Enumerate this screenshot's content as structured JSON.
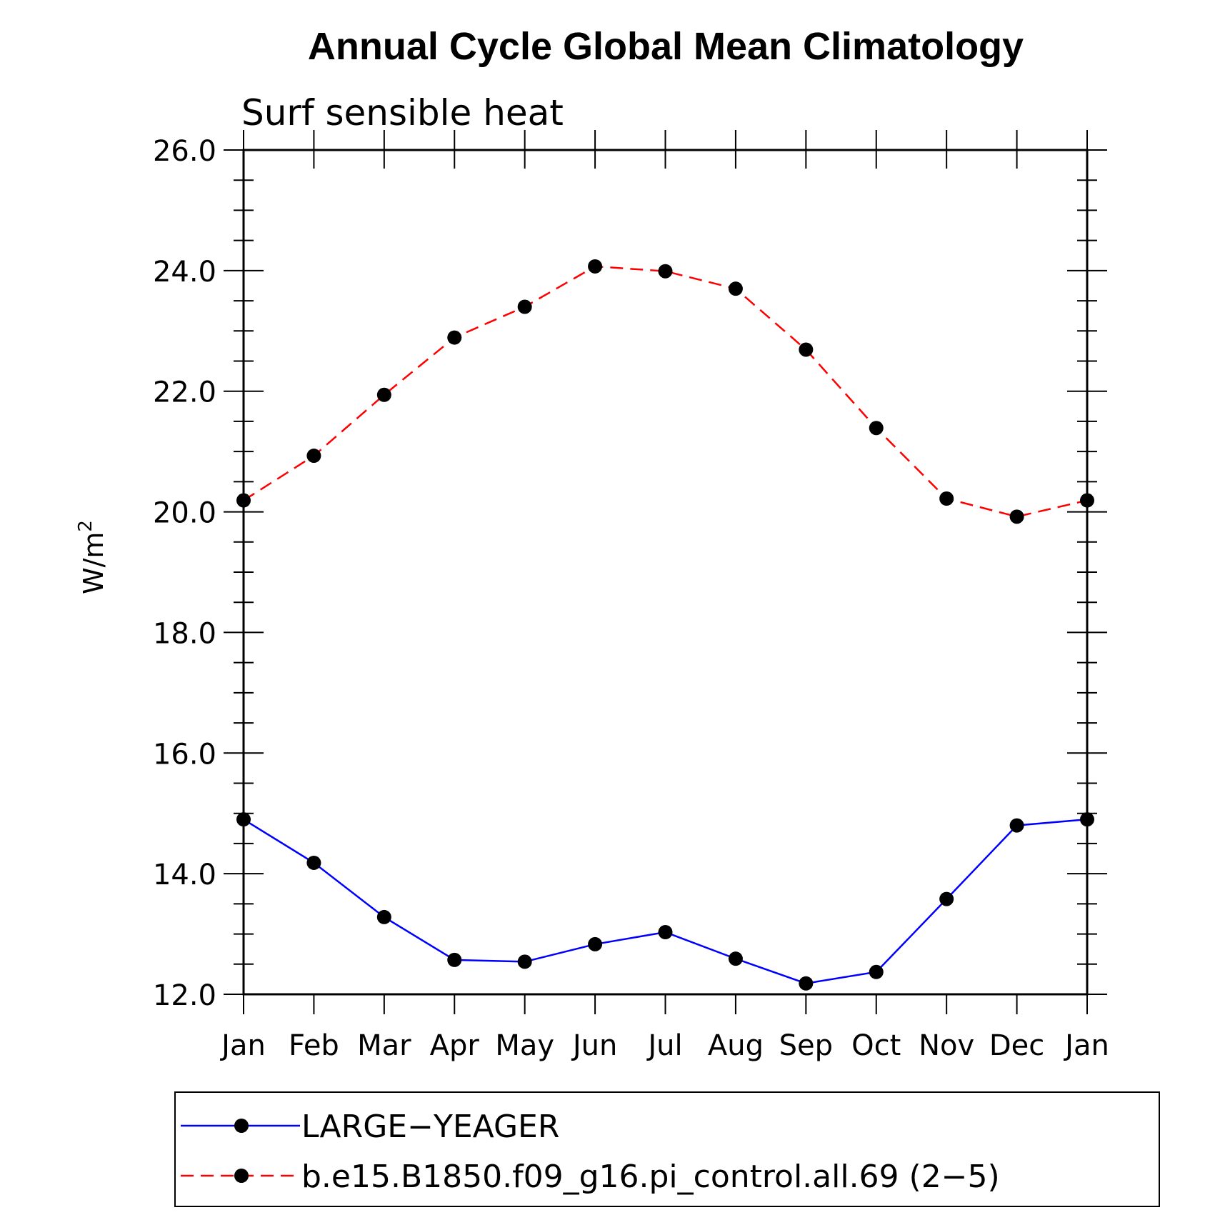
{
  "chart_data": {
    "type": "line",
    "title": "Annual Cycle Global Mean Climatology",
    "subtitle": "Surf sensible heat",
    "ylabel": "W/m",
    "ylabel_superscript": "2",
    "xlabel": "",
    "categories": [
      "Jan",
      "Feb",
      "Mar",
      "Apr",
      "May",
      "Jun",
      "Jul",
      "Aug",
      "Sep",
      "Oct",
      "Nov",
      "Dec",
      "Jan"
    ],
    "ylim": [
      12.0,
      26.0
    ],
    "yticks": [
      "12.0",
      "14.0",
      "16.0",
      "18.0",
      "20.0",
      "22.0",
      "24.0",
      "26.0"
    ],
    "ytick_values": [
      12,
      14,
      16,
      18,
      20,
      22,
      24,
      26
    ],
    "y_minor_step": 0.5,
    "grid": false,
    "legend_position": "bottom",
    "series": [
      {
        "name": "LARGE−YEAGER",
        "color": "#0000ff",
        "line_style": "solid",
        "marker": "circle",
        "values": [
          14.9,
          14.18,
          13.28,
          12.57,
          12.54,
          12.83,
          13.03,
          12.59,
          12.18,
          12.37,
          13.58,
          14.8,
          14.9
        ]
      },
      {
        "name": "b.e15.B1850.f09_g16.pi_control.all.69 (2−5)",
        "color": "#ff0000",
        "line_style": "dashed",
        "marker": "circle",
        "values": [
          20.19,
          20.93,
          21.94,
          22.89,
          23.4,
          24.07,
          23.99,
          23.7,
          22.69,
          21.39,
          20.22,
          19.92,
          20.19
        ]
      }
    ]
  }
}
